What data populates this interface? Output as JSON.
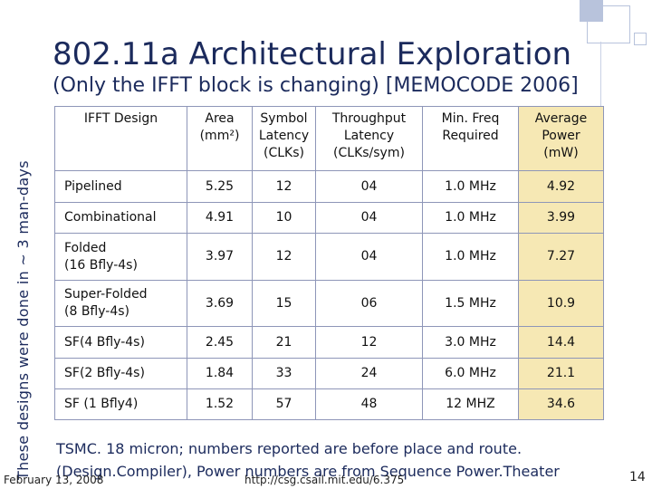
{
  "slide": {
    "title": "802.11a Architectural Exploration",
    "subtitle": "(Only the IFFT block is changing) [MEMOCODE 2006]",
    "side_note": "These designs were done in ~ 3 man-days",
    "footer_note_line1": "TSMC. 18 micron; numbers reported are before place and route.",
    "footer_note_line2": "(Design.Compiler), Power numbers are from Sequence Power.Theater",
    "date": "February 13, 2008",
    "url": "http://csg.csail.mit.edu/6.375",
    "page_number": "14"
  },
  "table": {
    "headers": {
      "design": "IFFT Design",
      "area": "Area",
      "area_unit": "(mm²)",
      "symbol1": "Symbol",
      "symbol2": "Latency",
      "symbol3": "(CLKs)",
      "throughput1": "Throughput",
      "throughput2": "Latency",
      "throughput3": "(CLKs/sym)",
      "freq1": "Min. Freq",
      "freq2": "Required",
      "power1": "Average",
      "power2": "Power",
      "power3": "(mW)"
    },
    "rows": [
      {
        "name": "Pipelined",
        "name2": "",
        "area": "5.25",
        "latency": "12",
        "throughput": "04",
        "freq": "1.0 MHz",
        "power": "4.92"
      },
      {
        "name": "Combinational",
        "name2": "",
        "area": "4.91",
        "latency": "10",
        "throughput": "04",
        "freq": "1.0 MHz",
        "power": "3.99"
      },
      {
        "name": "Folded",
        "name2": "(16 Bfly-4s)",
        "area": "3.97",
        "latency": "12",
        "throughput": "04",
        "freq": "1.0 MHz",
        "power": "7.27"
      },
      {
        "name": "Super-Folded",
        "name2": "(8 Bfly-4s)",
        "area": "3.69",
        "latency": "15",
        "throughput": "06",
        "freq": "1.5 MHz",
        "power": "10.9"
      },
      {
        "name": "SF(4 Bfly-4s)",
        "name2": "",
        "area": "2.45",
        "latency": "21",
        "throughput": "12",
        "freq": "3.0 MHz",
        "power": "14.4"
      },
      {
        "name": "SF(2 Bfly-4s)",
        "name2": "",
        "area": "1.84",
        "latency": "33",
        "throughput": "24",
        "freq": "6.0 MHz",
        "power": "21.1"
      },
      {
        "name": "SF (1 Bfly4)",
        "name2": "",
        "area": "1.52",
        "latency": "57",
        "throughput": "48",
        "freq": "12 MHZ",
        "power": "34.6"
      }
    ]
  }
}
